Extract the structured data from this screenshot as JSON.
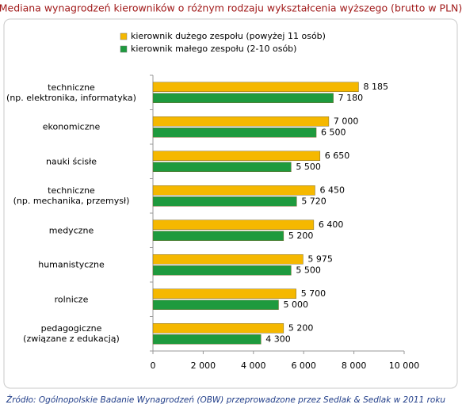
{
  "chart_data": {
    "type": "bar",
    "orientation": "horizontal",
    "title": "Mediana wynagrodzeń kierowników o różnym rodzaju wykształcenia wyższego (brutto w PLN)",
    "categories": [
      "techniczne\n(np. elektronika, informatyka)",
      "ekonomiczne",
      "nauki ścisłe",
      "techniczne\n(np. mechanika, przemysł)",
      "medyczne",
      "humanistyczne",
      "rolnicze",
      "pedagogiczne\n(związane z edukacją)"
    ],
    "series": [
      {
        "name": "kierownik dużego zespołu (powyżej 11 osób)",
        "color": "#f5b800",
        "values": [
          8185,
          7000,
          6650,
          6450,
          6400,
          5975,
          5700,
          5200
        ],
        "value_labels": [
          "8 185",
          "7 000",
          "6 650",
          "6 450",
          "6 400",
          "5 975",
          "5 700",
          "5 200"
        ]
      },
      {
        "name": "kierownik małego zespołu (2-10 osób)",
        "color": "#1e9a3e",
        "values": [
          7180,
          6500,
          5500,
          5720,
          5200,
          5500,
          5000,
          4300
        ],
        "value_labels": [
          "7 180",
          "6 500",
          "5 500",
          "5 720",
          "5 200",
          "5 500",
          "5 000",
          "4 300"
        ]
      }
    ],
    "xlim": [
      0,
      10000
    ],
    "xticks": [
      0,
      {
        "value": 2000,
        "label": "2 000"
      },
      {
        "value": 4000,
        "label": "4 000"
      },
      {
        "value": 6000,
        "label": "6 000"
      },
      {
        "value": 8000,
        "label": "8 000"
      },
      {
        "value": 10000,
        "label": "10 000"
      }
    ],
    "source": "Źródło: Ogólnopolskie Badanie Wynagrodzeń (OBW) przeprowadzone przez Sedlak & Sedlak w 2011 roku"
  }
}
